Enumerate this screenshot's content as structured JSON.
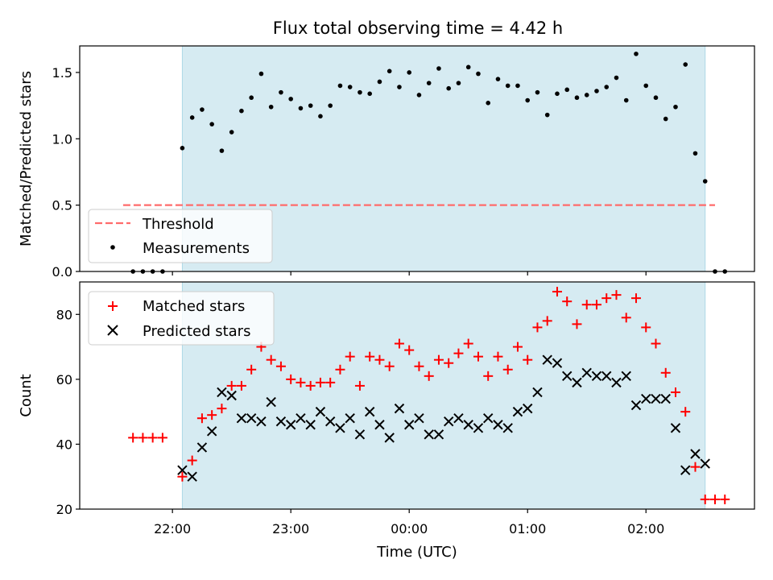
{
  "chart_data": [
    {
      "type": "scatter",
      "title": "Flux total observing time = 4.42 h",
      "ylabel": "Matched/Predicted stars",
      "xlabel": "",
      "ylim": [
        0,
        1.7
      ],
      "yticks": [
        "0.0",
        "0.5",
        "1.0",
        "1.5"
      ],
      "legend_position": "lower left",
      "observing_window": [
        "22:05",
        "02:30"
      ],
      "threshold": {
        "name": "Threshold",
        "value": 0.5,
        "x_range": [
          "21:35",
          "02:35"
        ],
        "color": "#ff6b6b"
      },
      "series": [
        {
          "name": "Measurements",
          "color": "#000000",
          "x": [
            "21:40",
            "21:45",
            "21:50",
            "21:55",
            "22:05",
            "22:10",
            "22:15",
            "22:20",
            "22:25",
            "22:30",
            "22:35",
            "22:40",
            "22:45",
            "22:50",
            "22:55",
            "23:00",
            "23:05",
            "23:10",
            "23:15",
            "23:20",
            "23:25",
            "23:30",
            "23:35",
            "23:40",
            "23:45",
            "23:50",
            "23:55",
            "00:00",
            "00:05",
            "00:10",
            "00:15",
            "00:20",
            "00:25",
            "00:30",
            "00:35",
            "00:40",
            "00:45",
            "00:50",
            "00:55",
            "01:00",
            "01:05",
            "01:10",
            "01:15",
            "01:20",
            "01:25",
            "01:30",
            "01:35",
            "01:40",
            "01:45",
            "01:50",
            "01:55",
            "02:00",
            "02:05",
            "02:10",
            "02:15",
            "02:20",
            "02:25",
            "02:30",
            "02:35",
            "02:40"
          ],
          "y": [
            0,
            0,
            0,
            0,
            0.93,
            1.16,
            1.22,
            1.11,
            0.91,
            1.05,
            1.21,
            1.31,
            1.49,
            1.24,
            1.35,
            1.3,
            1.23,
            1.25,
            1.17,
            1.25,
            1.4,
            1.39,
            1.35,
            1.34,
            1.43,
            1.51,
            1.39,
            1.5,
            1.33,
            1.42,
            1.53,
            1.38,
            1.42,
            1.54,
            1.49,
            1.27,
            1.45,
            1.4,
            1.4,
            1.29,
            1.35,
            1.18,
            1.34,
            1.37,
            1.31,
            1.33,
            1.36,
            1.39,
            1.46,
            1.29,
            1.64,
            1.4,
            1.31,
            1.15,
            1.24,
            1.56,
            0.89,
            0.68,
            0,
            0
          ]
        }
      ]
    },
    {
      "type": "scatter",
      "title": "",
      "ylabel": "Count",
      "xlabel": "Time (UTC)",
      "ylim": [
        20,
        90
      ],
      "yticks": [
        "20",
        "40",
        "60",
        "80"
      ],
      "xticks": [
        "22:00",
        "23:00",
        "00:00",
        "01:00",
        "02:00"
      ],
      "legend_position": "upper left",
      "observing_window": [
        "22:05",
        "02:30"
      ],
      "series": [
        {
          "name": "Matched stars",
          "color": "#ff0000",
          "marker": "+",
          "x": [
            "21:40",
            "21:45",
            "21:50",
            "21:55",
            "22:05",
            "22:10",
            "22:15",
            "22:20",
            "22:25",
            "22:30",
            "22:35",
            "22:40",
            "22:45",
            "22:50",
            "22:55",
            "23:00",
            "23:05",
            "23:10",
            "23:15",
            "23:20",
            "23:25",
            "23:30",
            "23:35",
            "23:40",
            "23:45",
            "23:50",
            "23:55",
            "00:00",
            "00:05",
            "00:10",
            "00:15",
            "00:20",
            "00:25",
            "00:30",
            "00:35",
            "00:40",
            "00:45",
            "00:50",
            "00:55",
            "01:00",
            "01:05",
            "01:10",
            "01:15",
            "01:20",
            "01:25",
            "01:30",
            "01:35",
            "01:40",
            "01:45",
            "01:50",
            "01:55",
            "02:00",
            "02:05",
            "02:10",
            "02:15",
            "02:20",
            "02:25",
            "02:30",
            "02:35",
            "02:40"
          ],
          "y": [
            42,
            42,
            42,
            42,
            30,
            35,
            48,
            49,
            51,
            58,
            58,
            63,
            70,
            66,
            64,
            60,
            59,
            58,
            59,
            59,
            63,
            67,
            58,
            67,
            66,
            64,
            71,
            69,
            64,
            61,
            66,
            65,
            68,
            71,
            67,
            61,
            67,
            63,
            70,
            66,
            76,
            78,
            87,
            84,
            77,
            83,
            83,
            85,
            86,
            79,
            85,
            76,
            71,
            62,
            56,
            50,
            33,
            23,
            23,
            23
          ]
        },
        {
          "name": "Predicted stars",
          "color": "#000000",
          "marker": "x",
          "x": [
            "22:05",
            "22:10",
            "22:15",
            "22:20",
            "22:25",
            "22:30",
            "22:35",
            "22:40",
            "22:45",
            "22:50",
            "22:55",
            "23:00",
            "23:05",
            "23:10",
            "23:15",
            "23:20",
            "23:25",
            "23:30",
            "23:35",
            "23:40",
            "23:45",
            "23:50",
            "23:55",
            "00:00",
            "00:05",
            "00:10",
            "00:15",
            "00:20",
            "00:25",
            "00:30",
            "00:35",
            "00:40",
            "00:45",
            "00:50",
            "00:55",
            "01:00",
            "01:05",
            "01:10",
            "01:15",
            "01:20",
            "01:25",
            "01:30",
            "01:35",
            "01:40",
            "01:45",
            "01:50",
            "01:55",
            "02:00",
            "02:05",
            "02:10",
            "02:15",
            "02:20",
            "02:25",
            "02:30"
          ],
          "y": [
            32,
            30,
            39,
            44,
            56,
            55,
            48,
            48,
            47,
            53,
            47,
            46,
            48,
            46,
            50,
            47,
            45,
            48,
            43,
            50,
            46,
            42,
            51,
            46,
            48,
            43,
            43,
            47,
            48,
            46,
            45,
            48,
            46,
            45,
            50,
            51,
            56,
            66,
            65,
            61,
            59,
            62,
            61,
            61,
            59,
            61,
            52,
            54,
            54,
            54,
            45,
            32,
            37,
            34
          ]
        }
      ]
    }
  ]
}
